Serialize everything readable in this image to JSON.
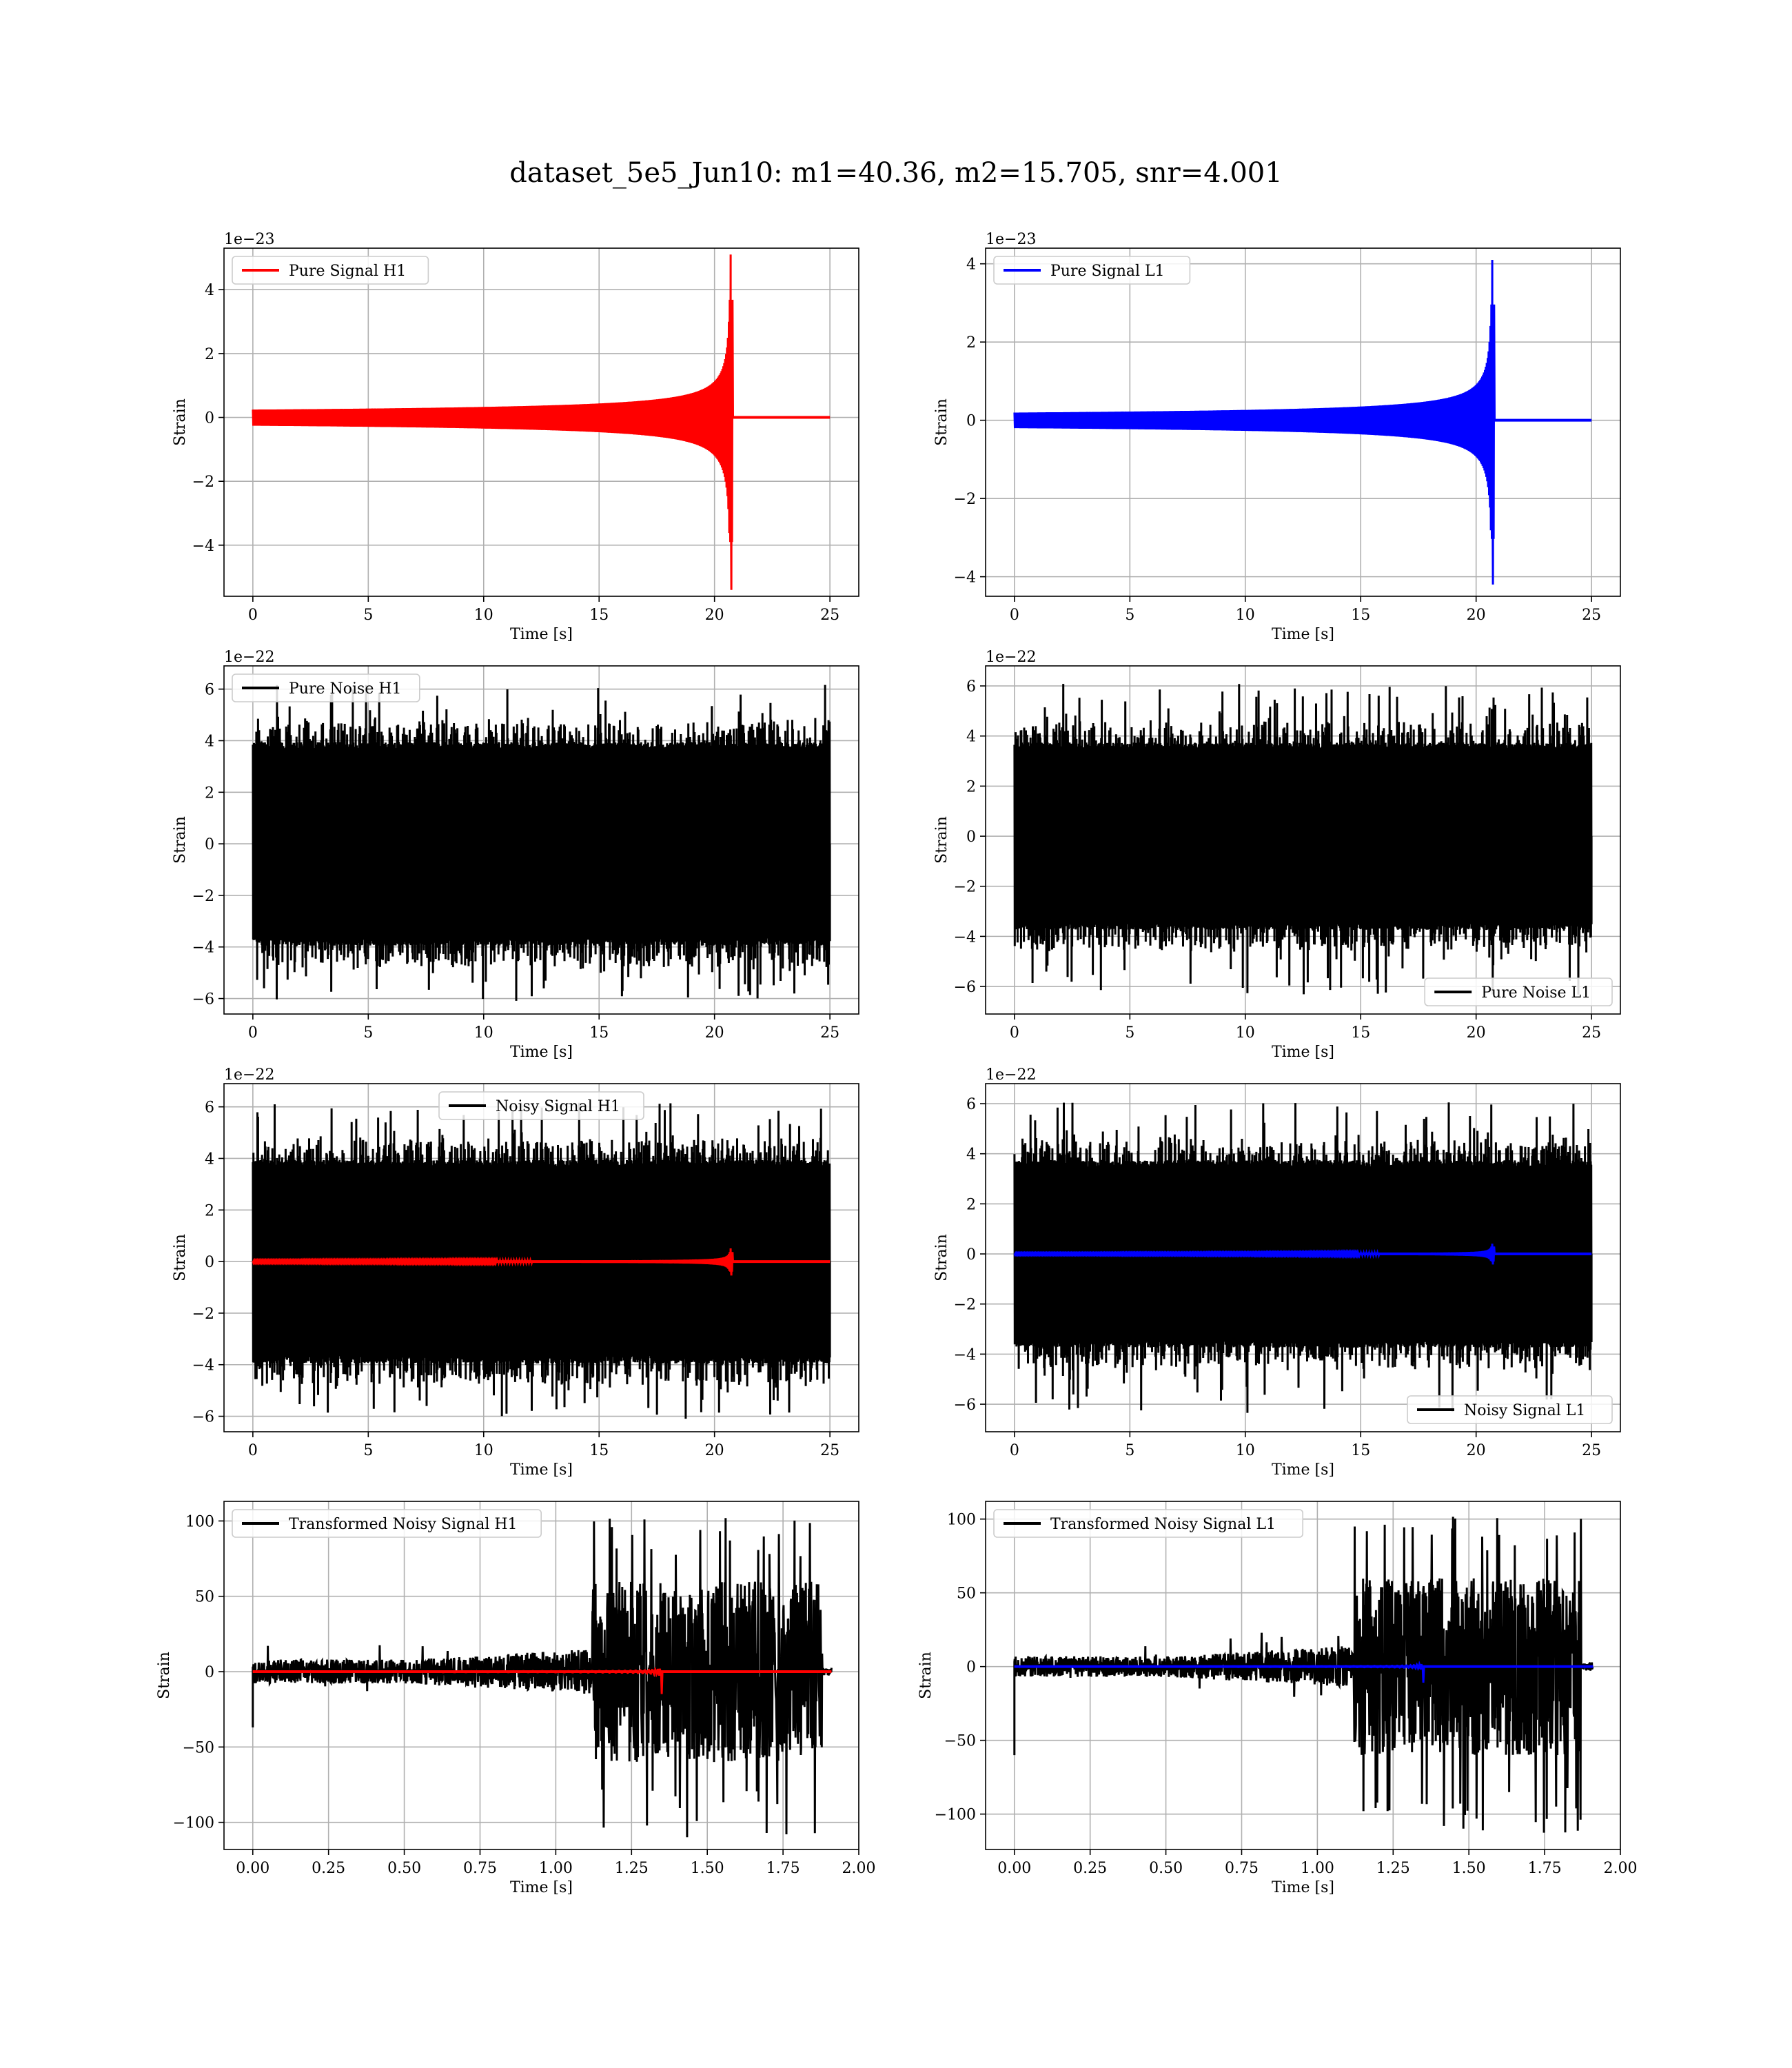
{
  "figure": {
    "title": "dataset_5e5_Jun10: m1=40.36, m2=15.705, snr=4.001",
    "colors": {
      "h1_signal": "#ff0000",
      "l1_signal": "#0000ff",
      "noise": "#000000",
      "grid": "#b0b0b0"
    }
  },
  "chart_data": [
    {
      "panel": "pure-signal-h1",
      "type": "line",
      "xlabel": "Time [s]",
      "ylabel": "Strain",
      "offset_text": "1e−23",
      "xlim": [
        -1.25,
        26.25
      ],
      "ylim": [
        -5.6,
        5.3
      ],
      "xticks": [
        0,
        5,
        10,
        15,
        20,
        25
      ],
      "xtick_labels": [
        "0",
        "5",
        "10",
        "15",
        "20",
        "25"
      ],
      "yticks": [
        -4,
        -2,
        0,
        2,
        4
      ],
      "ytick_labels": [
        "−4",
        "−2",
        "0",
        "2",
        "4"
      ],
      "legend_loc": "upper left",
      "grid": true,
      "series": [
        {
          "name": "Pure Signal H1",
          "color": "#ff0000",
          "style": "chirp",
          "x_range": [
            0,
            25
          ],
          "merger_time": 20.7,
          "peak_pos": 5.1,
          "peak_neg": -5.4
        }
      ]
    },
    {
      "panel": "pure-signal-l1",
      "type": "line",
      "xlabel": "Time [s]",
      "ylabel": "Strain",
      "offset_text": "1e−23",
      "xlim": [
        -1.25,
        26.25
      ],
      "ylim": [
        -4.5,
        4.4
      ],
      "xticks": [
        0,
        5,
        10,
        15,
        20,
        25
      ],
      "xtick_labels": [
        "0",
        "5",
        "10",
        "15",
        "20",
        "25"
      ],
      "yticks": [
        -4,
        -2,
        0,
        2,
        4
      ],
      "ytick_labels": [
        "−4",
        "−2",
        "0",
        "2",
        "4"
      ],
      "legend_loc": "upper left",
      "grid": true,
      "series": [
        {
          "name": "Pure Signal L1",
          "color": "#0000ff",
          "style": "chirp",
          "x_range": [
            0,
            25
          ],
          "merger_time": 20.7,
          "peak_pos": 4.1,
          "peak_neg": -4.2
        }
      ]
    },
    {
      "panel": "pure-noise-h1",
      "type": "line",
      "xlabel": "Time [s]",
      "ylabel": "Strain",
      "offset_text": "1e−22",
      "xlim": [
        -1.25,
        26.25
      ],
      "ylim": [
        -6.6,
        6.9
      ],
      "xticks": [
        0,
        5,
        10,
        15,
        20,
        25
      ],
      "xtick_labels": [
        "0",
        "5",
        "10",
        "15",
        "20",
        "25"
      ],
      "yticks": [
        -6,
        -4,
        -2,
        0,
        2,
        4,
        6
      ],
      "ytick_labels": [
        "−6",
        "−4",
        "−2",
        "0",
        "2",
        "4",
        "6"
      ],
      "legend_loc": "upper left",
      "grid": true,
      "series": [
        {
          "name": "Pure Noise H1",
          "color": "#000000",
          "style": "noise",
          "x_range": [
            0,
            25
          ],
          "core_pos": 3.8,
          "core_neg": -3.8,
          "peak_pos": 6.3,
          "peak_neg": -6.1
        }
      ]
    },
    {
      "panel": "pure-noise-l1",
      "type": "line",
      "xlabel": "Time [s]",
      "ylabel": "Strain",
      "offset_text": "1e−22",
      "xlim": [
        -1.25,
        26.25
      ],
      "ylim": [
        -7.1,
        6.8
      ],
      "xticks": [
        0,
        5,
        10,
        15,
        20,
        25
      ],
      "xtick_labels": [
        "0",
        "5",
        "10",
        "15",
        "20",
        "25"
      ],
      "yticks": [
        -6,
        -4,
        -2,
        0,
        2,
        4,
        6
      ],
      "ytick_labels": [
        "−6",
        "−4",
        "−2",
        "0",
        "2",
        "4",
        "6"
      ],
      "legend_loc": "lower right",
      "grid": true,
      "series": [
        {
          "name": "Pure Noise L1",
          "color": "#000000",
          "style": "noise",
          "x_range": [
            0,
            25
          ],
          "core_pos": 3.6,
          "core_neg": -3.6,
          "peak_pos": 6.1,
          "peak_neg": -6.4
        }
      ]
    },
    {
      "panel": "noisy-signal-h1",
      "type": "line",
      "xlabel": "Time [s]",
      "ylabel": "Strain",
      "offset_text": "1e−22",
      "xlim": [
        -1.25,
        26.25
      ],
      "ylim": [
        -6.6,
        6.9
      ],
      "xticks": [
        0,
        5,
        10,
        15,
        20,
        25
      ],
      "xtick_labels": [
        "0",
        "5",
        "10",
        "15",
        "20",
        "25"
      ],
      "yticks": [
        -6,
        -4,
        -2,
        0,
        2,
        4,
        6
      ],
      "ytick_labels": [
        "−6",
        "−4",
        "−2",
        "0",
        "2",
        "4",
        "6"
      ],
      "legend_loc": "upper center",
      "grid": true,
      "series": [
        {
          "name": "Noisy Signal H1",
          "color": "#000000",
          "style": "noise",
          "x_range": [
            0,
            25
          ],
          "core_pos": 3.8,
          "core_neg": -3.8,
          "peak_pos": 6.2,
          "peak_neg": -6.1
        },
        {
          "color": "#ff0000",
          "style": "chirp",
          "x_range": [
            0,
            25
          ],
          "merger_time": 20.7,
          "peak_pos": 0.51,
          "peak_neg": -0.54
        }
      ]
    },
    {
      "panel": "noisy-signal-l1",
      "type": "line",
      "xlabel": "Time [s]",
      "ylabel": "Strain",
      "offset_text": "1e−22",
      "xlim": [
        -1.25,
        26.25
      ],
      "ylim": [
        -7.1,
        6.8
      ],
      "xticks": [
        0,
        5,
        10,
        15,
        20,
        25
      ],
      "xtick_labels": [
        "0",
        "5",
        "10",
        "15",
        "20",
        "25"
      ],
      "yticks": [
        -6,
        -4,
        -2,
        0,
        2,
        4,
        6
      ],
      "ytick_labels": [
        "−6",
        "−4",
        "−2",
        "0",
        "2",
        "4",
        "6"
      ],
      "legend_loc": "lower right",
      "grid": true,
      "series": [
        {
          "name": "Noisy Signal L1",
          "color": "#000000",
          "style": "noise",
          "x_range": [
            0,
            25
          ],
          "core_pos": 3.6,
          "core_neg": -3.6,
          "peak_pos": 6.1,
          "peak_neg": -6.4
        },
        {
          "color": "#0000ff",
          "style": "chirp",
          "x_range": [
            0,
            25
          ],
          "merger_time": 20.7,
          "peak_pos": 0.41,
          "peak_neg": -0.42
        }
      ]
    },
    {
      "panel": "transformed-noisy-signal-h1",
      "type": "line",
      "xlabel": "Time [s]",
      "ylabel": "Strain",
      "offset_text": "",
      "xlim": [
        -0.095,
        2.0
      ],
      "ylim": [
        -118,
        113
      ],
      "xticks": [
        0,
        0.25,
        0.5,
        0.75,
        1.0,
        1.25,
        1.5,
        1.75,
        2.0
      ],
      "xtick_labels": [
        "0.00",
        "0.25",
        "0.50",
        "0.75",
        "1.00",
        "1.25",
        "1.50",
        "1.75",
        "2.00"
      ],
      "yticks": [
        -100,
        -50,
        0,
        50,
        100
      ],
      "ytick_labels": [
        "−100",
        "−50",
        "0",
        "50",
        "100"
      ],
      "legend_loc": "upper left",
      "grid": true,
      "series": [
        {
          "name": "Transformed Noisy Signal H1",
          "color": "#000000",
          "style": "whitened",
          "x_range": [
            0,
            1.91
          ],
          "burst_start": 1.12,
          "burst_end": 1.88,
          "early_amp": 8,
          "mid_amp": 15,
          "burst_amp": 60,
          "peak_pos": 102,
          "peak_neg": -111,
          "start_spike": -37
        },
        {
          "color": "#ff0000",
          "style": "whitened-chirp",
          "x_range": [
            0,
            1.91
          ],
          "merger_time": 1.35,
          "peak_pos": 13,
          "peak_neg": -15
        }
      ]
    },
    {
      "panel": "transformed-noisy-signal-l1",
      "type": "line",
      "xlabel": "Time [s]",
      "ylabel": "Strain",
      "offset_text": "",
      "xlim": [
        -0.095,
        2.0
      ],
      "ylim": [
        -124,
        112
      ],
      "xticks": [
        0,
        0.25,
        0.5,
        0.75,
        1.0,
        1.25,
        1.5,
        1.75,
        2.0
      ],
      "xtick_labels": [
        "0.00",
        "0.25",
        "0.50",
        "0.75",
        "1.00",
        "1.25",
        "1.50",
        "1.75",
        "2.00"
      ],
      "yticks": [
        -100,
        -50,
        0,
        50,
        100
      ],
      "ytick_labels": [
        "−100",
        "−50",
        "0",
        "50",
        "100"
      ],
      "legend_loc": "upper left",
      "grid": true,
      "series": [
        {
          "name": "Transformed Noisy Signal L1",
          "color": "#000000",
          "style": "whitened",
          "x_range": [
            0,
            1.91
          ],
          "burst_start": 1.12,
          "burst_end": 1.87,
          "early_amp": 7,
          "mid_amp": 14,
          "burst_amp": 60,
          "peak_pos": 102,
          "peak_neg": -113,
          "start_spike": -60
        },
        {
          "color": "#0000ff",
          "style": "whitened-chirp",
          "x_range": [
            0,
            1.91
          ],
          "merger_time": 1.35,
          "peak_pos": 11,
          "peak_neg": -11
        }
      ]
    }
  ]
}
